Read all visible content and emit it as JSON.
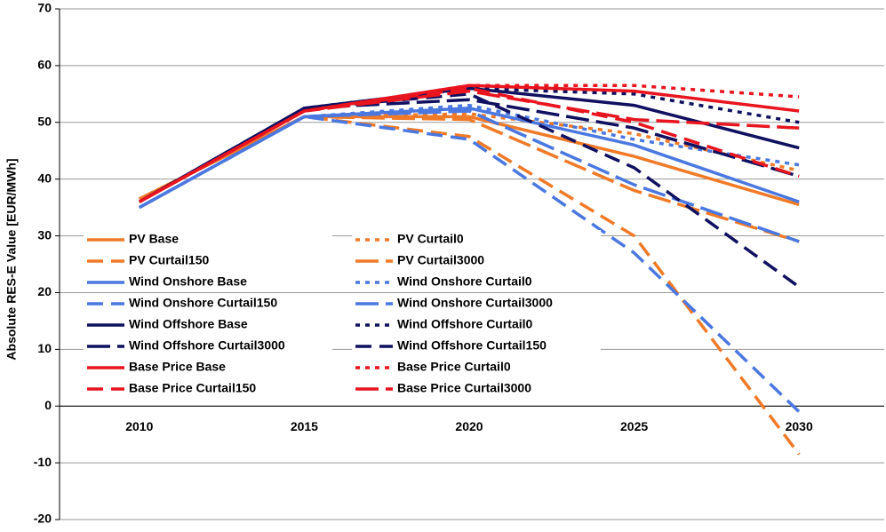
{
  "chart_data": {
    "type": "line",
    "y_label": "Absolute RES-E Value [EUR/MWh]",
    "categories": [
      "2010",
      "2015",
      "2020",
      "2025",
      "2030"
    ],
    "ylim": [
      -20,
      70
    ],
    "yticks": [
      -20,
      -10,
      0,
      10,
      20,
      30,
      40,
      50,
      60,
      70
    ],
    "grid": true,
    "legend": "lower left",
    "series": [
      {
        "name": "PV Base",
        "color": "#f07a28",
        "dash": "solid",
        "values": [
          36.5,
          51,
          51,
          44,
          35.5
        ]
      },
      {
        "name": "PV Curtail0",
        "color": "#f07a28",
        "dash": "dot",
        "values": [
          36.5,
          51,
          51.5,
          48,
          41.5
        ]
      },
      {
        "name": "PV Curtail150",
        "color": "#f07a28",
        "dash": "dash",
        "values": [
          36.5,
          51,
          47.5,
          30,
          -8.5
        ]
      },
      {
        "name": "PV Curtail3000",
        "color": "#f07a28",
        "dash": "longdash",
        "values": [
          36.5,
          51,
          50.5,
          38,
          29
        ]
      },
      {
        "name": "Wind Onshore Base",
        "color": "#4a78e0",
        "dash": "solid",
        "values": [
          35,
          51,
          52.5,
          46,
          36
        ]
      },
      {
        "name": "Wind Onshore Curtail0",
        "color": "#4a78e0",
        "dash": "dot",
        "values": [
          35,
          51,
          53,
          47,
          42.5
        ]
      },
      {
        "name": "Wind Onshore Curtail150",
        "color": "#4a78e0",
        "dash": "dash",
        "values": [
          35,
          51,
          47,
          27,
          -1
        ]
      },
      {
        "name": "Wind Onshore Curtail3000",
        "color": "#4a78e0",
        "dash": "longdash",
        "values": [
          35,
          51,
          52,
          39,
          29
        ]
      },
      {
        "name": "Wind Offshore Base",
        "color": "#101060",
        "dash": "solid",
        "values": [
          36,
          52.5,
          56,
          53,
          45.5
        ]
      },
      {
        "name": "Wind Offshore Curtail0",
        "color": "#101060",
        "dash": "dot",
        "values": [
          36,
          52.5,
          56,
          55,
          50
        ]
      },
      {
        "name": "Wind Offshore Curtail3000",
        "color": "#101060",
        "dash": "longdash",
        "values": [
          36,
          52.5,
          54,
          49,
          40.5
        ]
      },
      {
        "name": "Wind Offshore Curtail150",
        "color": "#101060",
        "dash": "dash",
        "values": [
          36,
          52.5,
          55,
          42,
          21
        ]
      },
      {
        "name": "Base Price Base",
        "color": "#e8141e",
        "dash": "solid",
        "values": [
          36,
          52,
          56.5,
          55.5,
          52
        ]
      },
      {
        "name": "Base Price Curtail0",
        "color": "#e8141e",
        "dash": "dot",
        "values": [
          36,
          52,
          56.5,
          56.5,
          54.5
        ]
      },
      {
        "name": "Base Price Curtail150",
        "color": "#e8141e",
        "dash": "dash",
        "values": [
          36,
          52,
          56,
          50,
          40.5
        ]
      },
      {
        "name": "Base Price Curtail3000",
        "color": "#e8141e",
        "dash": "longdash",
        "values": [
          36,
          52,
          55.5,
          50.5,
          49
        ]
      }
    ]
  }
}
